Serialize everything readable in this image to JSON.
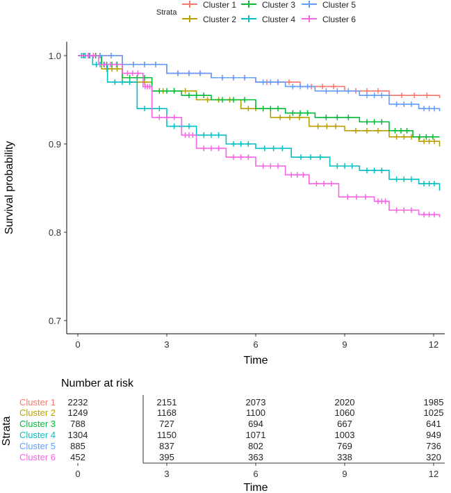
{
  "chart_data": {
    "type": "line",
    "subtype": "kaplan-meier",
    "legend_title": "Strata",
    "legend_placement": "top",
    "xlabel": "Time",
    "ylabel": "Survival probability",
    "xlim": [
      0,
      12.3
    ],
    "ylim": [
      0.69,
      1.0
    ],
    "xticks": [
      "0",
      "3",
      "6",
      "9",
      "12"
    ],
    "yticks": [
      "0.7",
      "0.8",
      "0.9",
      "1.0"
    ],
    "series": [
      {
        "name": "Cluster 1",
        "color": "#F8766D",
        "points": [
          [
            0,
            1.0
          ],
          [
            1.5,
            0.99
          ],
          [
            3,
            0.98
          ],
          [
            4.5,
            0.975
          ],
          [
            6,
            0.97
          ],
          [
            7.5,
            0.965
          ],
          [
            9,
            0.96
          ],
          [
            10.5,
            0.955
          ],
          [
            12.2,
            0.952
          ]
        ]
      },
      {
        "name": "Cluster 2",
        "color": "#B79F00",
        "points": [
          [
            0,
            1.0
          ],
          [
            0.8,
            0.985
          ],
          [
            1.5,
            0.97
          ],
          [
            2.5,
            0.96
          ],
          [
            4,
            0.95
          ],
          [
            5.5,
            0.94
          ],
          [
            6.5,
            0.93
          ],
          [
            7.8,
            0.92
          ],
          [
            9,
            0.915
          ],
          [
            10.5,
            0.908
          ],
          [
            11.5,
            0.903
          ],
          [
            12.2,
            0.897
          ]
        ]
      },
      {
        "name": "Cluster 3",
        "color": "#00BA38",
        "points": [
          [
            0,
            1.0
          ],
          [
            0.8,
            0.99
          ],
          [
            1.5,
            0.975
          ],
          [
            2.5,
            0.96
          ],
          [
            3.5,
            0.955
          ],
          [
            4.5,
            0.95
          ],
          [
            6,
            0.94
          ],
          [
            7,
            0.935
          ],
          [
            8,
            0.93
          ],
          [
            9.5,
            0.925
          ],
          [
            10.5,
            0.915
          ],
          [
            11.3,
            0.908
          ],
          [
            12.2,
            0.908
          ]
        ]
      },
      {
        "name": "Cluster 4",
        "color": "#00BFC4",
        "points": [
          [
            0,
            1.0
          ],
          [
            0.5,
            0.99
          ],
          [
            1,
            0.97
          ],
          [
            2,
            0.94
          ],
          [
            3,
            0.92
          ],
          [
            4,
            0.91
          ],
          [
            5,
            0.9
          ],
          [
            6,
            0.895
          ],
          [
            7.2,
            0.885
          ],
          [
            8.5,
            0.875
          ],
          [
            9.5,
            0.87
          ],
          [
            10.5,
            0.86
          ],
          [
            11.5,
            0.855
          ],
          [
            12.2,
            0.847
          ]
        ]
      },
      {
        "name": "Cluster 5",
        "color": "#619CFF",
        "points": [
          [
            0,
            1.0
          ],
          [
            1.5,
            0.99
          ],
          [
            3,
            0.98
          ],
          [
            4.5,
            0.975
          ],
          [
            6,
            0.97
          ],
          [
            7,
            0.965
          ],
          [
            8,
            0.96
          ],
          [
            9.5,
            0.955
          ],
          [
            10.5,
            0.945
          ],
          [
            11.5,
            0.94
          ],
          [
            12.2,
            0.937
          ]
        ]
      },
      {
        "name": "Cluster 6",
        "color": "#F564E3",
        "points": [
          [
            0,
            1.0
          ],
          [
            0.7,
            0.99
          ],
          [
            1.5,
            0.98
          ],
          [
            2.2,
            0.965
          ],
          [
            2.5,
            0.93
          ],
          [
            3.5,
            0.91
          ],
          [
            4,
            0.895
          ],
          [
            5,
            0.885
          ],
          [
            6,
            0.875
          ],
          [
            7,
            0.865
          ],
          [
            7.8,
            0.855
          ],
          [
            8.8,
            0.84
          ],
          [
            10,
            0.835
          ],
          [
            10.5,
            0.825
          ],
          [
            11.5,
            0.82
          ],
          [
            12.2,
            0.817
          ]
        ]
      }
    ],
    "risk_table": {
      "title": "Number at risk",
      "ylabel": "Strata",
      "xlabel": "Time",
      "times": [
        "0",
        "3",
        "6",
        "9",
        "12"
      ],
      "rows": [
        {
          "name": "Cluster 1",
          "values": [
            "2232",
            "2151",
            "2073",
            "2020",
            "1985"
          ]
        },
        {
          "name": "Cluster 2",
          "values": [
            "1249",
            "1168",
            "1100",
            "1060",
            "1025"
          ]
        },
        {
          "name": "Cluster 3",
          "values": [
            "788",
            "727",
            "694",
            "667",
            "641"
          ]
        },
        {
          "name": "Cluster 4",
          "values": [
            "1304",
            "1150",
            "1071",
            "1003",
            "949"
          ]
        },
        {
          "name": "Cluster 5",
          "values": [
            "885",
            "837",
            "802",
            "769",
            "736"
          ]
        },
        {
          "name": "Cluster 6",
          "values": [
            "452",
            "395",
            "363",
            "338",
            "320"
          ]
        }
      ]
    }
  }
}
